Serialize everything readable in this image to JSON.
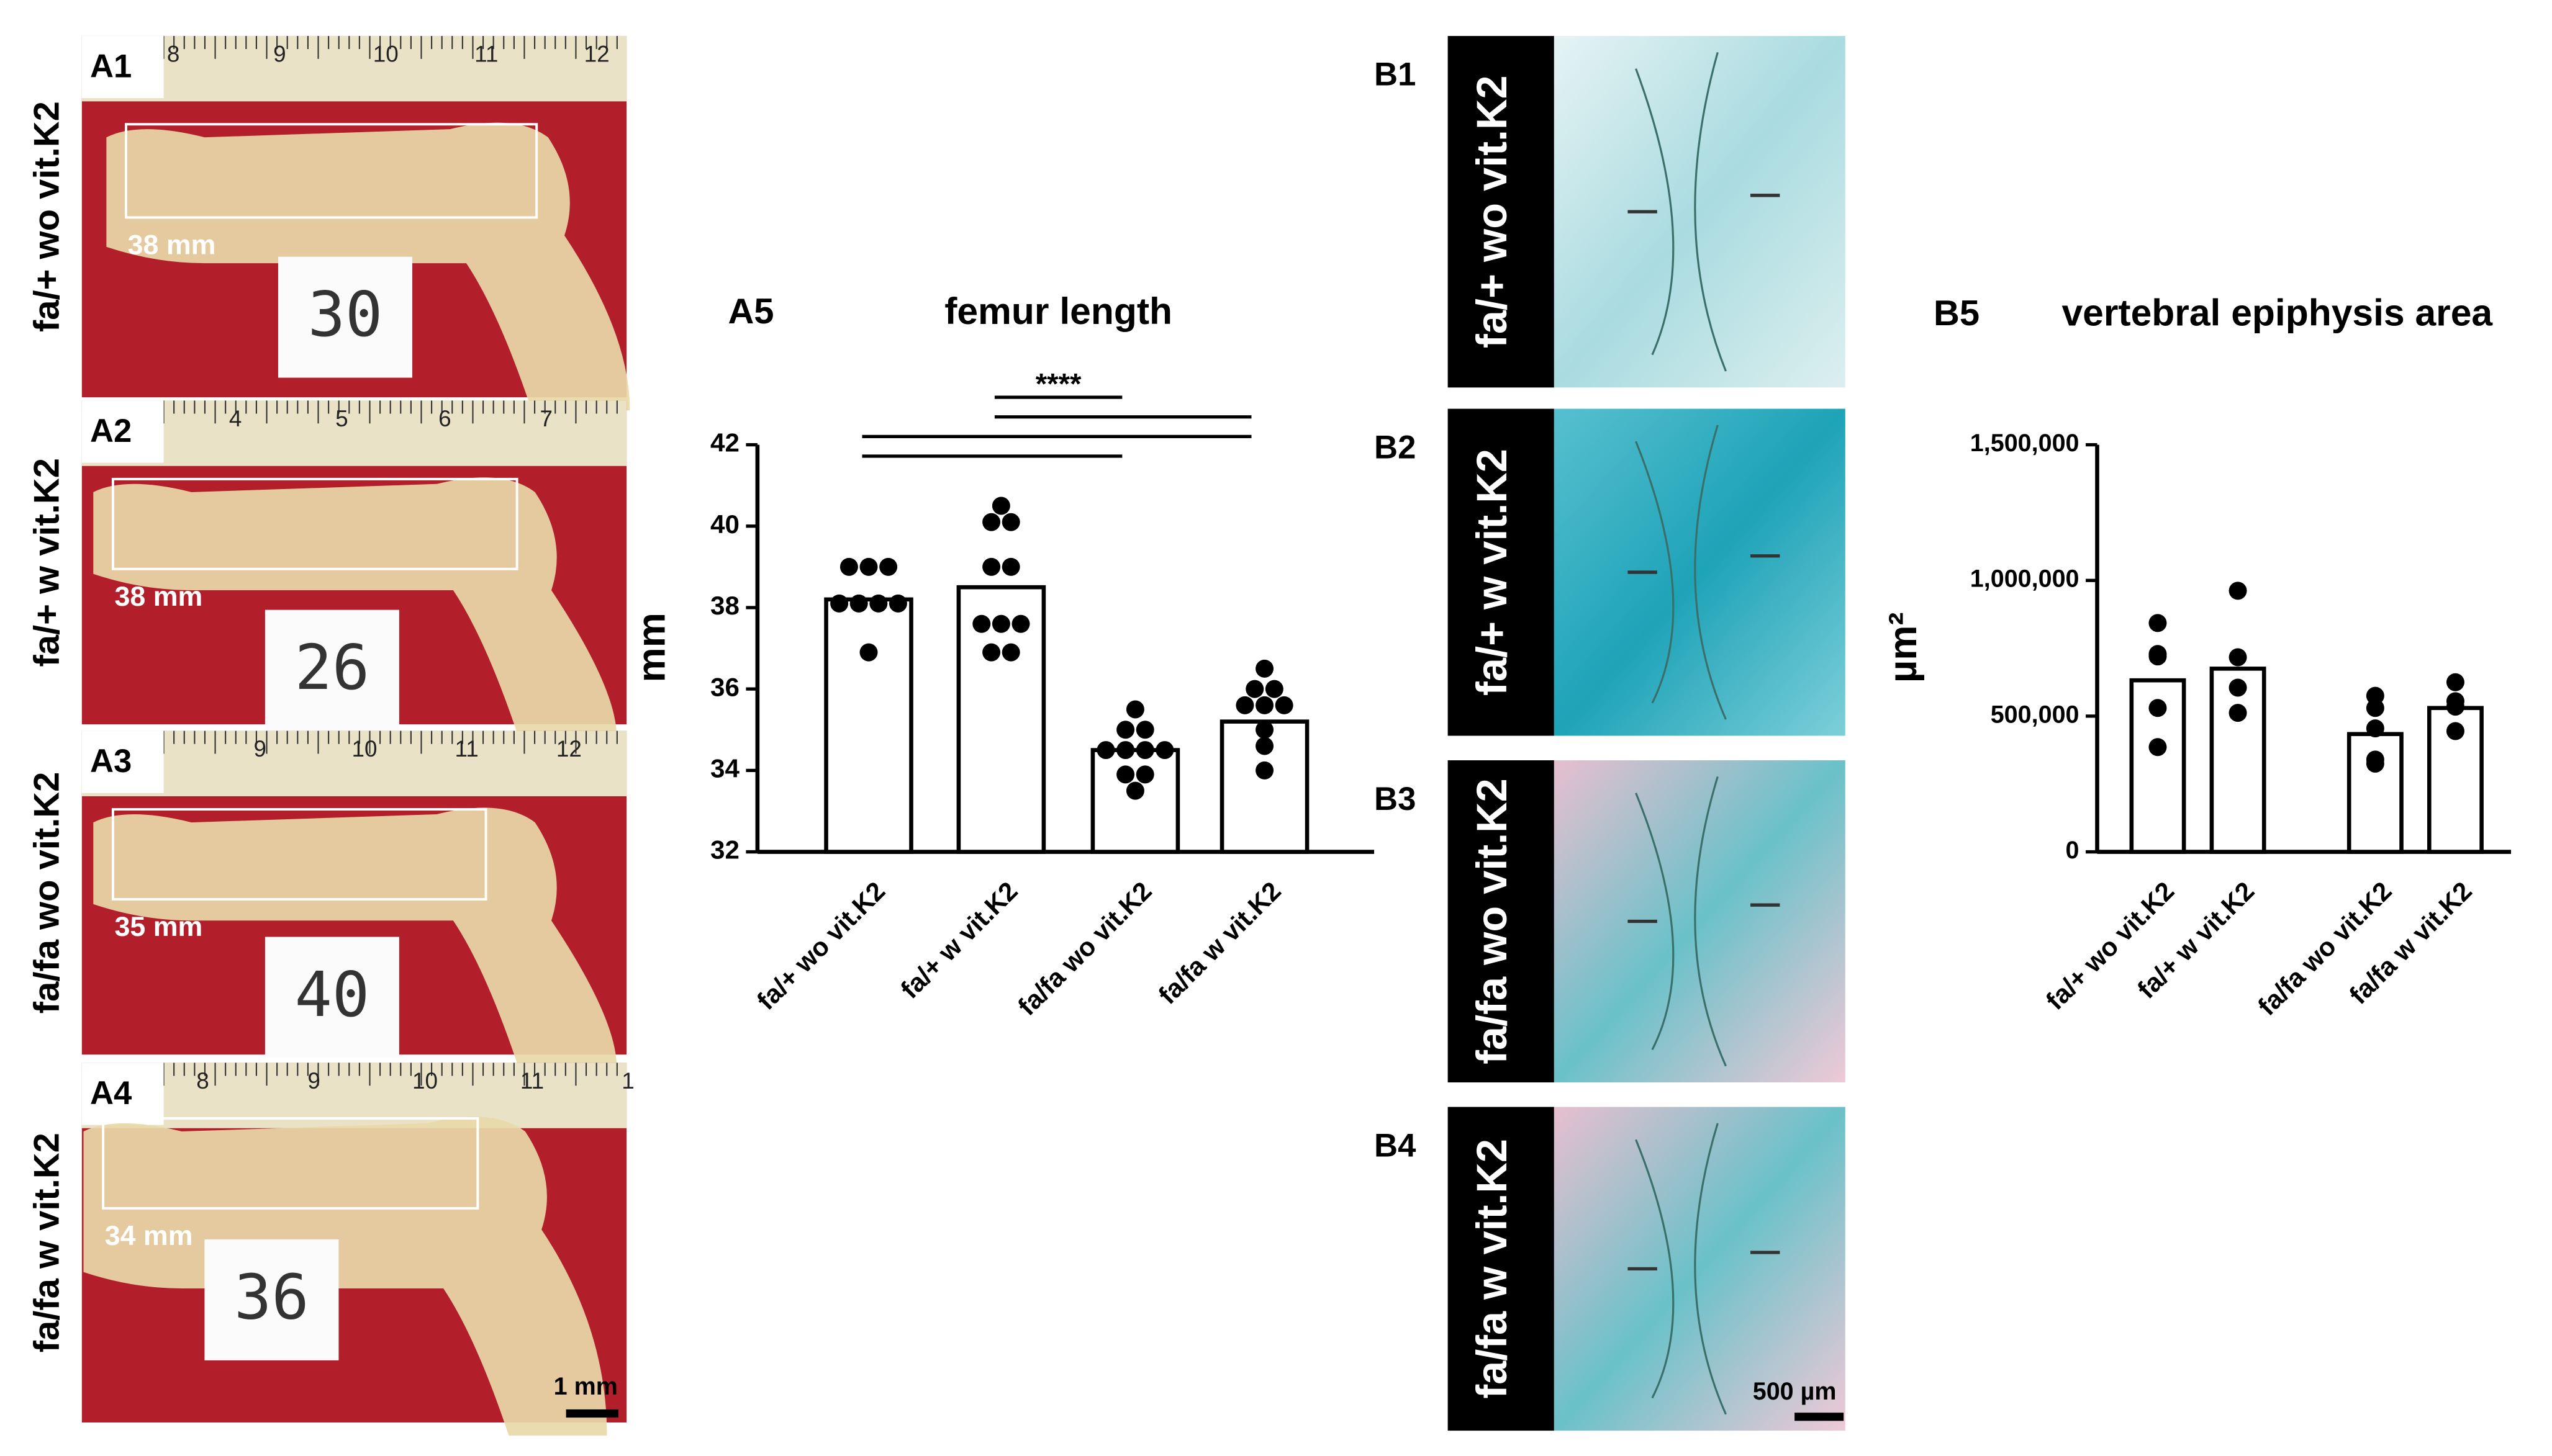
{
  "panels_a": [
    {
      "label": "A1",
      "row_label": "fa/+ wo vit.K2",
      "length": "38 mm",
      "card": "30",
      "ruler": [
        "8",
        "9",
        "10",
        "11",
        "12"
      ]
    },
    {
      "label": "A2",
      "row_label": "fa/+ w vit.K2",
      "length": "38 mm",
      "card": "26",
      "ruler": [
        "4",
        "5",
        "6",
        "7"
      ]
    },
    {
      "label": "A3",
      "row_label": "fa/fa wo vit.K2",
      "length": "35 mm",
      "card": "40",
      "ruler": [
        "9",
        "10",
        "11",
        "12"
      ]
    },
    {
      "label": "A4",
      "row_label": "fa/fa w vit.K2",
      "length": "34 mm",
      "card": "36",
      "ruler": [
        "8",
        "9",
        "10",
        "11",
        "1"
      ]
    }
  ],
  "scale_bar_a": "1 mm",
  "panels_b": [
    {
      "label": "B1",
      "row_label": "fa/+ wo vit.K2"
    },
    {
      "label": "B2",
      "row_label": "fa/+ w vit.K2"
    },
    {
      "label": "B3",
      "row_label": "fa/fa wo vit.K2"
    },
    {
      "label": "B4",
      "row_label": "fa/fa w vit.K2"
    }
  ],
  "scale_bar_b": "500 µm",
  "chart_data": [
    {
      "type": "bar",
      "panel_label": "A5",
      "title": "femur length",
      "ylabel": "mm",
      "categories": [
        "fa/+ wo vit.K2",
        "fa/+ w vit.K2",
        "fa/fa wo vit.K2",
        "fa/fa w vit.K2"
      ],
      "values": [
        38.2,
        38.5,
        34.5,
        35.2
      ],
      "points": [
        [
          39.0,
          39.0,
          39.0,
          38.1,
          38.1,
          38.1,
          38.1,
          36.9
        ],
        [
          40.5,
          40.1,
          40.1,
          39.0,
          39.0,
          37.6,
          37.6,
          37.6,
          36.9,
          36.9
        ],
        [
          35.5,
          35.0,
          35.0,
          34.5,
          34.5,
          34.5,
          34.5,
          33.9,
          33.9,
          33.5
        ],
        [
          36.5,
          36.0,
          36.0,
          35.6,
          35.6,
          35.6,
          35.0,
          34.6,
          34.0
        ]
      ],
      "bar_color": "#ffffff",
      "point_color": "#000000",
      "ylim": [
        32,
        42
      ],
      "yticks": [
        32,
        34,
        36,
        38,
        40,
        42
      ],
      "comparisons": [
        {
          "from": 1,
          "to": 2,
          "label": "****"
        },
        {
          "from": 1,
          "to": 3
        },
        {
          "from": 0,
          "to": 3
        },
        {
          "from": 0,
          "to": 2
        }
      ]
    },
    {
      "type": "bar",
      "panel_label": "B5",
      "title": "vertebral epiphysis area",
      "ylabel": "µm²",
      "categories": [
        "fa/+ wo vit.K2",
        "fa/+ w vit.K2",
        "fa/fa wo vit.K2",
        "fa/fa w vit.K2"
      ],
      "values": [
        632000,
        675000,
        434000,
        530000
      ],
      "points": [
        [
          843000,
          729000,
          720000,
          530000,
          386000
        ],
        [
          962000,
          717000,
          605000,
          512000
        ],
        [
          575000,
          530000,
          455000,
          340000,
          325000
        ],
        [
          625000,
          555000,
          535000,
          445000
        ]
      ],
      "bar_color": "#ffffff",
      "point_color": "#000000",
      "ylim": [
        0,
        1500000
      ],
      "yticks": [
        0,
        {
          "value": 500000,
          "label": "500,000"
        },
        {
          "value": 1000000,
          "label": "1,000,000"
        },
        {
          "value": 1500000,
          "label": "1,500,000"
        }
      ]
    }
  ]
}
